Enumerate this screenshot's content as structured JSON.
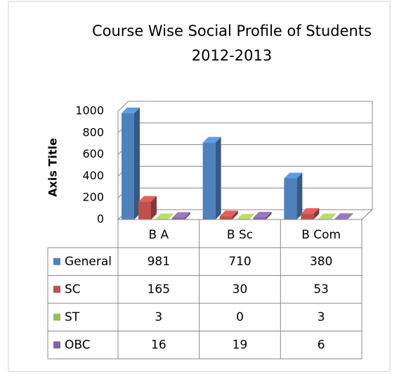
{
  "chart_data": {
    "type": "bar3d",
    "title": "Course Wise Social Profile of Students",
    "subtitle": "2012-2013",
    "y_axis_title": "Axis Title",
    "categories": [
      "B A",
      "B Sc",
      "B Com"
    ],
    "series": [
      {
        "name": "General",
        "color": "#4f81bd",
        "values": [
          981,
          710,
          380
        ]
      },
      {
        "name": "SC",
        "color": "#c0504d",
        "values": [
          165,
          30,
          53
        ]
      },
      {
        "name": "ST",
        "color": "#9bbb59",
        "values": [
          3,
          0,
          3
        ]
      },
      {
        "name": "OBC",
        "color": "#8064a2",
        "values": [
          16,
          19,
          6
        ]
      }
    ],
    "ylim": [
      0,
      1000
    ],
    "yticks": [
      0,
      200,
      400,
      600,
      800,
      1000
    ],
    "grid": true,
    "data_table": true
  }
}
